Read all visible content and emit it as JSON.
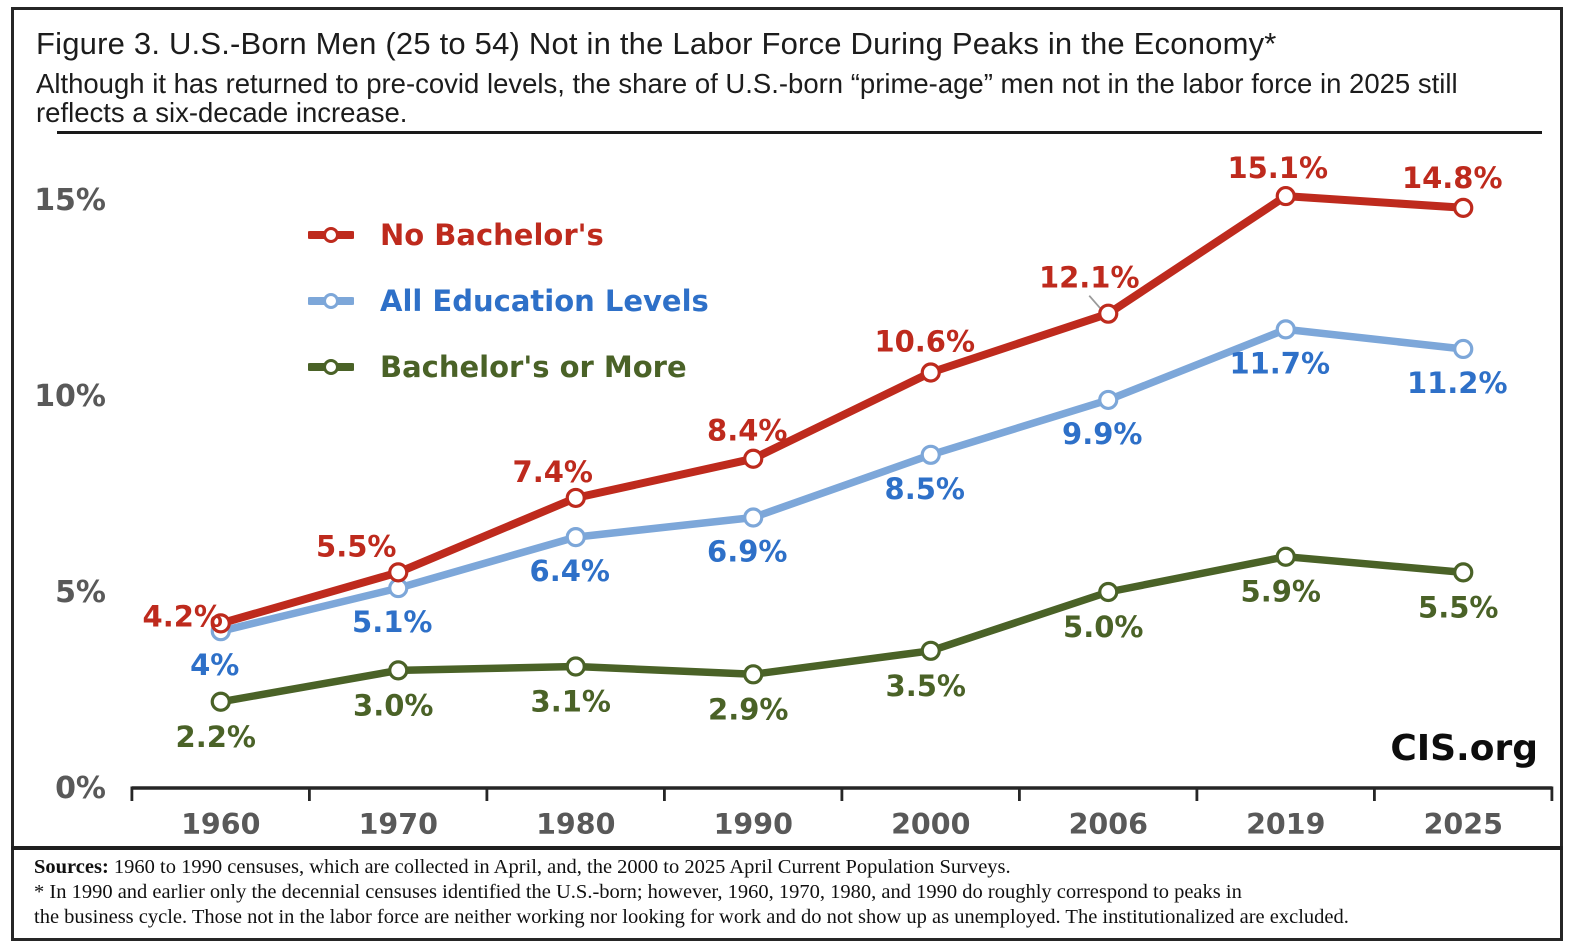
{
  "figure": {
    "title": "Figure 3. U.S.-Born Men (25 to 54) Not in the Labor Force During Peaks in the Economy*",
    "subtitle_lines": [
      "Although it has returned to pre-covid levels, the share of U.S.-born “prime-age” men not in the labor force in 2025 still",
      "reflects a six-decade increase."
    ],
    "brand": "CIS.org"
  },
  "chart_data": {
    "type": "line",
    "title": "U.S.-Born Men (25 to 54) Not in the Labor Force During Peaks in the Economy",
    "categories": [
      "1960",
      "1970",
      "1980",
      "1990",
      "2000",
      "2006",
      "2019",
      "2025"
    ],
    "series": [
      {
        "name": "No Bachelor's",
        "values": [
          4.2,
          5.5,
          7.4,
          8.4,
          10.6,
          12.1,
          15.1,
          14.8
        ],
        "point_labels": [
          "4.2%",
          "5.5%",
          "7.4%",
          "8.4%",
          "10.6%",
          "12.1%",
          "15.1%",
          "14.8%"
        ],
        "line_color": "#be2a1d",
        "label_color": "#be2a1d",
        "label_position": "above"
      },
      {
        "name": "All Education Levels",
        "values": [
          4.0,
          5.1,
          6.4,
          6.9,
          8.5,
          9.9,
          11.7,
          11.2
        ],
        "point_labels": [
          "4%",
          "5.1%",
          "6.4%",
          "6.9%",
          "8.5%",
          "9.9%",
          "11.7%",
          "11.2%"
        ],
        "line_color": "#7da7d9",
        "label_color": "#2e70c8",
        "label_position": "below"
      },
      {
        "name": "Bachelor's or More",
        "values": [
          2.2,
          3.0,
          3.1,
          2.9,
          3.5,
          5.0,
          5.9,
          5.5
        ],
        "point_labels": [
          "2.2%",
          "3.0%",
          "3.1%",
          "2.9%",
          "3.5%",
          "5.0%",
          "5.9%",
          "5.5%"
        ],
        "line_color": "#4a6227",
        "label_color": "#4a6227",
        "label_position": "below"
      }
    ],
    "y_ticks": [
      {
        "value": 0,
        "label": "0%"
      },
      {
        "value": 5,
        "label": "5%"
      },
      {
        "value": 10,
        "label": "10%"
      },
      {
        "value": 15,
        "label": "15%"
      }
    ],
    "ylim": [
      0,
      16.2
    ],
    "xlabel": "",
    "ylabel": "",
    "grid": false,
    "marker": "open-circle",
    "legend_position": "inside-top-left",
    "tick_label_color": "#595959",
    "axis_color": "#262626",
    "callout": {
      "series_index": 0,
      "point_index": 5
    }
  },
  "footnotes": {
    "sources_label": "Sources:",
    "sources_text": " 1960 to 1990 censuses, which are collected in April, and, the 2000 to 2025 April Current Population Surveys.",
    "note_lines": [
      "* In 1990 and earlier only the decennial censuses identified the U.S.-born; however, 1960, 1970, 1980, and 1990 do roughly correspond to peaks in",
      "the business cycle. Those not in the labor force are neither working nor looking for work and do not show up as unemployed. The institutionalized are excluded."
    ]
  }
}
